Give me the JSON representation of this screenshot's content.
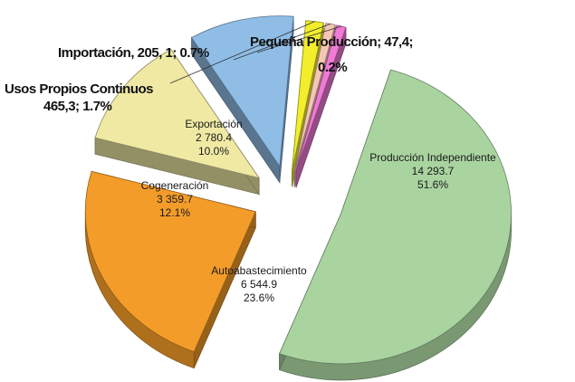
{
  "chart_data": {
    "type": "pie",
    "style": "3d-exploded",
    "title": "",
    "legend": "none",
    "unit_note": "",
    "series": [
      {
        "name": "Producción Independiente",
        "value_label": "14 293.7",
        "value": 14293.7,
        "percent_label": "51.6%",
        "percent": 51.6,
        "color": "#a9d4a0",
        "label_placement": "inside"
      },
      {
        "name": "Autoabastecimiento",
        "value_label": "6 544.9",
        "value": 6544.9,
        "percent_label": "23.6%",
        "percent": 23.6,
        "color": "#f39c2a",
        "label_placement": "inside"
      },
      {
        "name": "Cogeneración",
        "value_label": "3 359.7",
        "value": 3359.7,
        "percent_label": "12.1%",
        "percent": 12.1,
        "color": "#efe9a4",
        "label_placement": "inside"
      },
      {
        "name": "Exportación",
        "value_label": "2 780.4",
        "value": 2780.4,
        "percent_label": "10.0%",
        "percent": 10.0,
        "color": "#8fbde6",
        "label_placement": "inside"
      },
      {
        "name": "Usos Propios Continuos",
        "value_label": "465,3",
        "value": 465.3,
        "percent_label": "1.7%",
        "percent": 1.7,
        "color": "#f2ee2c",
        "label_placement": "outside"
      },
      {
        "name": "Importación",
        "value_label": "205, 1",
        "value": 205.1,
        "percent_label": "0.7%",
        "percent": 0.7,
        "color": "#f6c6b4",
        "label_placement": "outside"
      },
      {
        "name": "Pequeña Producción",
        "value_label": "47,4",
        "value": 47.4,
        "percent_label": "0.2%",
        "percent": 0.2,
        "color": "#f07ad6",
        "label_placement": "outside"
      }
    ],
    "outside_labels": {
      "importacion_line": "Importación,  205, 1;  0.7%",
      "pequena_line1": "Pequeña Producción; 47,4;",
      "pequena_line2": "0.2%",
      "usos_line1": "Usos Propios Continuos",
      "usos_line2": "465,3; 1.7%"
    }
  }
}
